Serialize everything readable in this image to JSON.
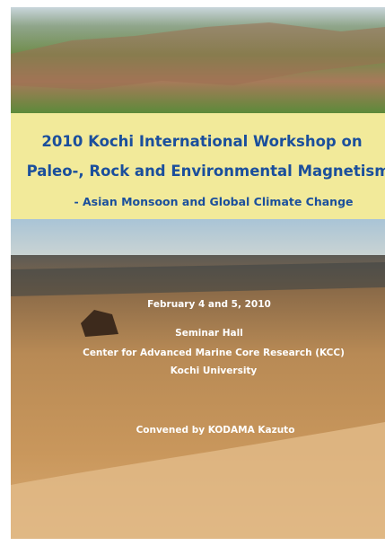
{
  "poster": {
    "title_lines": [
      "2010 Kochi International Workshop on",
      "Paleo-, Rock and Environmental Magnetism"
    ],
    "subtitle": "- Asian Monsoon and Global Climate Change",
    "date": "February 4 and 5, 2010",
    "venue_lines": [
      "Seminar Hall",
      "Center for Advanced Marine Core Research (KCC)",
      "Kochi University"
    ],
    "convener": "Convened by KODAMA Kazuto"
  }
}
